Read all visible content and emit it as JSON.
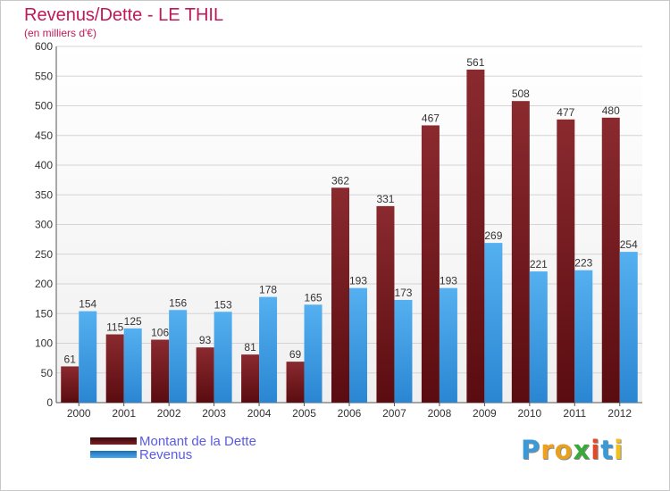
{
  "chart_data": {
    "type": "bar",
    "title": "Revenus/Dette - LE THIL",
    "subtitle": "(en milliers d'€)",
    "categories": [
      "2000",
      "2001",
      "2002",
      "2003",
      "2004",
      "2005",
      "2006",
      "2007",
      "2008",
      "2009",
      "2010",
      "2011",
      "2012"
    ],
    "series": [
      {
        "name": "Montant de la Dette",
        "color": "#7a1f24",
        "values": [
          61,
          115,
          106,
          93,
          81,
          69,
          362,
          331,
          467,
          561,
          508,
          477,
          480
        ]
      },
      {
        "name": "Revenus",
        "color": "#3d9ae3",
        "values": [
          154,
          125,
          156,
          153,
          178,
          165,
          193,
          173,
          193,
          269,
          221,
          223,
          254
        ]
      }
    ],
    "ylim": [
      0,
      600
    ],
    "yticks": [
      0,
      50,
      100,
      150,
      200,
      250,
      300,
      350,
      400,
      450,
      500,
      550,
      600
    ],
    "grid": true,
    "legend_position": "bottom-left"
  },
  "logo": {
    "letters": [
      "P",
      "r",
      "o",
      "x",
      "i",
      "t",
      "i"
    ],
    "colors": [
      "#3a9ad9",
      "#f0a01e",
      "#e8a020",
      "#3aa83a",
      "#e04a2a",
      "#3a9ad9",
      "#f0c020"
    ]
  }
}
